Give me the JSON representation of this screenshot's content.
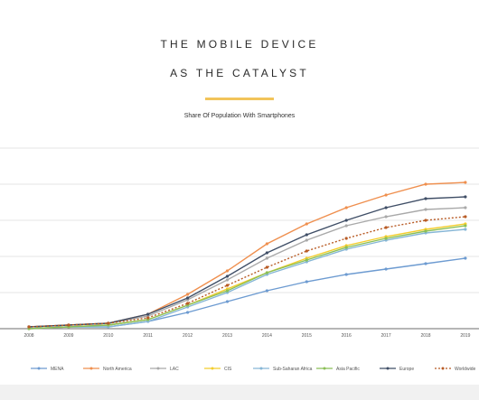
{
  "slide": {
    "title_line1": "THE MOBILE DEVICE",
    "title_line2": "AS THE CATALYST",
    "accent_color": "#f2c45a"
  },
  "chart_data": {
    "type": "line",
    "title": "Share Of Population With Smartphones",
    "xlabel": "",
    "ylabel": "",
    "ylim": [
      0,
      1
    ],
    "grid": true,
    "legend_position": "bottom",
    "x": [
      "2008",
      "2009",
      "2010",
      "2011",
      "2012",
      "2013",
      "2014",
      "2015",
      "2016",
      "2017",
      "2018",
      "2019"
    ],
    "series": [
      {
        "name": "MENA",
        "color": "#6d9bd1",
        "dashed": false,
        "marker": "circle",
        "values": [
          0.0,
          0.01,
          0.01,
          0.04,
          0.09,
          0.15,
          0.21,
          0.26,
          0.3,
          0.33,
          0.36,
          0.39
        ]
      },
      {
        "name": "North America",
        "color": "#ef8f4e",
        "dashed": false,
        "marker": "circle",
        "values": [
          0.01,
          0.02,
          0.03,
          0.08,
          0.19,
          0.32,
          0.47,
          0.58,
          0.67,
          0.74,
          0.8,
          0.81
        ]
      },
      {
        "name": "LAC",
        "color": "#a9a9a9",
        "dashed": false,
        "marker": "circle",
        "values": [
          0.01,
          0.02,
          0.03,
          0.07,
          0.16,
          0.27,
          0.39,
          0.49,
          0.57,
          0.62,
          0.66,
          0.67
        ]
      },
      {
        "name": "CIS",
        "color": "#f3cd2c",
        "dashed": false,
        "marker": "circle",
        "values": [
          0.0,
          0.01,
          0.02,
          0.05,
          0.13,
          0.22,
          0.31,
          0.39,
          0.46,
          0.51,
          0.55,
          0.58
        ]
      },
      {
        "name": "Sub-Saharan Africa",
        "color": "#86b6d6",
        "dashed": false,
        "marker": "circle",
        "values": [
          0.0,
          0.01,
          0.01,
          0.04,
          0.12,
          0.2,
          0.3,
          0.37,
          0.44,
          0.49,
          0.53,
          0.55
        ]
      },
      {
        "name": "Asia Pacific",
        "color": "#8bbf57",
        "dashed": false,
        "marker": "circle",
        "values": [
          0.0,
          0.01,
          0.02,
          0.05,
          0.13,
          0.21,
          0.31,
          0.38,
          0.45,
          0.5,
          0.54,
          0.57
        ]
      },
      {
        "name": "Europe",
        "color": "#3f4e66",
        "dashed": false,
        "marker": "circle",
        "values": [
          0.01,
          0.02,
          0.03,
          0.08,
          0.17,
          0.29,
          0.42,
          0.52,
          0.6,
          0.67,
          0.72,
          0.73
        ]
      },
      {
        "name": "Worldwide",
        "color": "#b85b25",
        "dashed": true,
        "marker": "circle",
        "values": [
          0.01,
          0.02,
          0.03,
          0.06,
          0.14,
          0.24,
          0.34,
          0.43,
          0.5,
          0.56,
          0.6,
          0.62
        ]
      }
    ]
  }
}
